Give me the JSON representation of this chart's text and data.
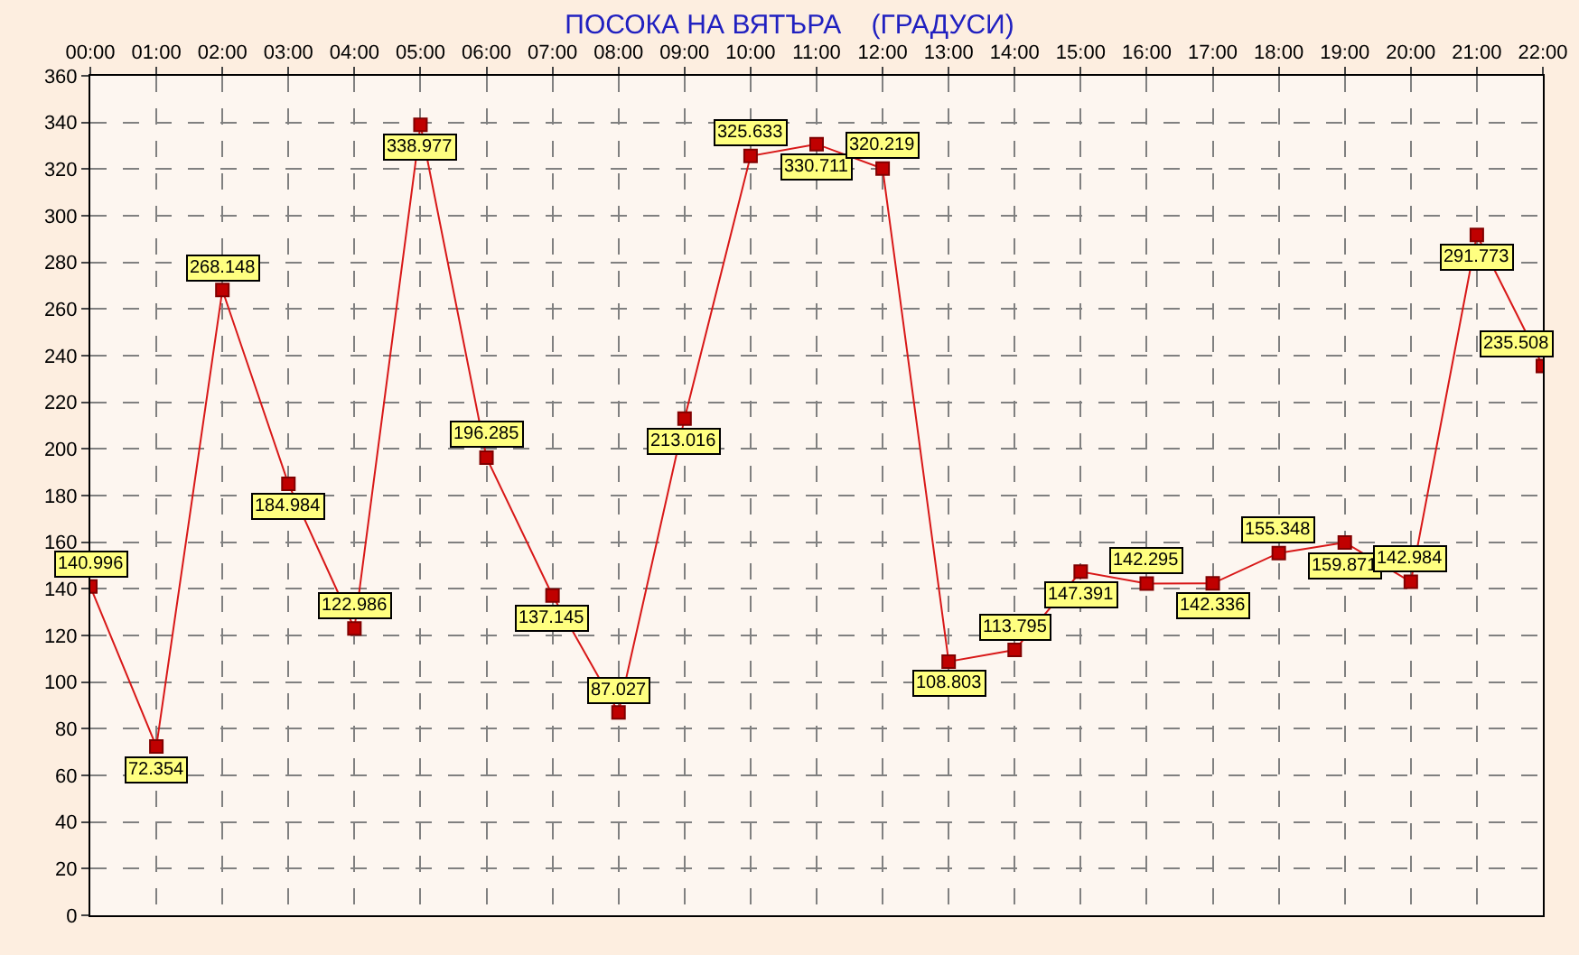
{
  "chart_data": {
    "type": "line",
    "title": "ПОСОКА НА ВЯТЪРА    (ГРАДУСИ)",
    "categories": [
      "00:00",
      "01:00",
      "02:00",
      "03:00",
      "04:00",
      "05:00",
      "06:00",
      "07:00",
      "08:00",
      "09:00",
      "10:00",
      "11:00",
      "12:00",
      "13:00",
      "14:00",
      "15:00",
      "16:00",
      "17:00",
      "18:00",
      "19:00",
      "20:00",
      "21:00",
      "22:00"
    ],
    "series": [
      {
        "color": "#d81818",
        "values": [
          140.996,
          72.354,
          268.148,
          184.984,
          122.986,
          338.977,
          196.285,
          137.145,
          87.027,
          213.016,
          325.633,
          330.711,
          320.219,
          108.803,
          113.795,
          147.391,
          142.295,
          142.336,
          155.348,
          159.871,
          142.984,
          291.773,
          235.508
        ]
      }
    ],
    "ylim": [
      0,
      360
    ],
    "yticks": [
      0,
      20,
      40,
      60,
      80,
      100,
      120,
      140,
      160,
      180,
      200,
      220,
      240,
      260,
      280,
      300,
      320,
      340,
      360
    ],
    "grid": true,
    "marker": "square",
    "line_style": "solid",
    "data_labels": true
  }
}
